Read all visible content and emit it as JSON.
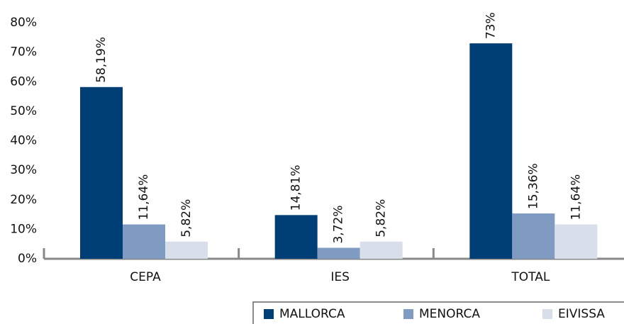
{
  "chart_data": {
    "type": "bar",
    "categories": [
      "CEPA",
      "IES",
      "TOTAL"
    ],
    "series": [
      {
        "name": "MALLORCA",
        "color": "#003f75",
        "values": [
          58.19,
          14.81,
          73
        ],
        "value_labels": [
          "58,19%",
          "14,81%",
          "73%"
        ]
      },
      {
        "name": "MENORCA",
        "color": "#7f9bc2",
        "values": [
          11.64,
          3.72,
          15.36
        ],
        "value_labels": [
          "11,64%",
          "3,72%",
          "15,36%"
        ]
      },
      {
        "name": "EIVISSA",
        "color": "#d9deeb",
        "values": [
          5.82,
          5.82,
          11.64
        ],
        "value_labels": [
          "5,82%",
          "5,82%",
          "11,64%"
        ]
      }
    ],
    "ylim": [
      0,
      80
    ],
    "yticks": [
      {
        "value": 0,
        "label": "0%"
      },
      {
        "value": 10,
        "label": "10%"
      },
      {
        "value": 20,
        "label": "20%"
      },
      {
        "value": 30,
        "label": "30%"
      },
      {
        "value": 40,
        "label": "40%"
      },
      {
        "value": 50,
        "label": "50%"
      },
      {
        "value": 60,
        "label": "60%"
      },
      {
        "value": 70,
        "label": "70%"
      },
      {
        "value": 80,
        "label": "80%"
      }
    ],
    "grid": false,
    "legend": "bottom-right"
  }
}
